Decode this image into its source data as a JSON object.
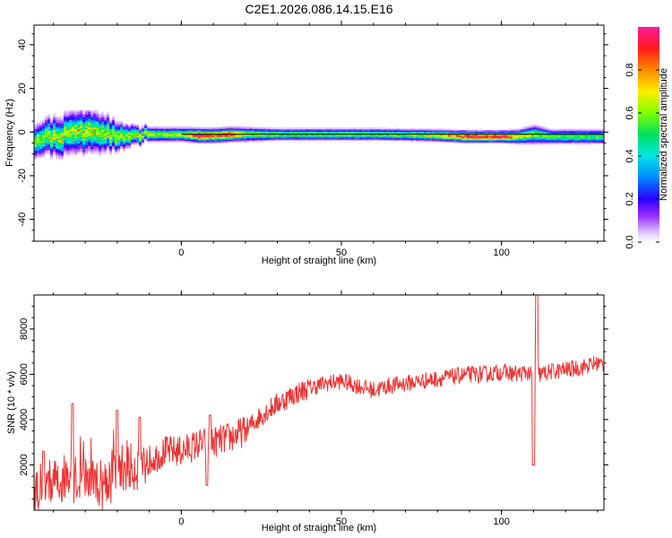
{
  "title": "C2E1.2026.086.14.15.E16",
  "chart_data": [
    {
      "type": "heatmap",
      "xlabel": "Height of straight line (km)",
      "ylabel": "Frequency (Hz)",
      "xlim": [
        -46,
        132
      ],
      "ylim": [
        -50,
        49
      ],
      "xticks": [
        "0",
        "50",
        "100"
      ],
      "yticks": [
        "-40",
        "-20",
        "0",
        "20",
        "40"
      ],
      "colorbar": {
        "label": "Normalized spectral amplitude",
        "range": [
          0,
          1
        ],
        "ticks": [
          "0.0",
          "0.2",
          "0.4",
          "0.6",
          "0.8"
        ]
      },
      "ridge": {
        "x": [
          -46,
          -40,
          -35,
          -30,
          -25,
          -20,
          -15,
          -10,
          -5,
          0,
          5,
          10,
          15,
          20,
          30,
          40,
          50,
          60,
          70,
          80,
          85,
          90,
          95,
          100,
          105,
          110,
          115,
          120,
          125,
          132
        ],
        "freq": [
          -3,
          -2,
          -1,
          0,
          -1,
          -1,
          -1,
          -1,
          -1,
          -1,
          -1.5,
          -1.5,
          -1,
          -1,
          -1,
          -1,
          -1,
          -1,
          -1.2,
          -1.5,
          -1.8,
          -2,
          -2,
          -2,
          -2,
          -1,
          -2,
          -2,
          -2,
          -2
        ],
        "amplitude": [
          0.55,
          0.6,
          0.6,
          0.6,
          0.6,
          0.6,
          0.62,
          0.65,
          0.6,
          0.62,
          0.95,
          0.9,
          0.9,
          0.62,
          0.58,
          0.58,
          0.58,
          0.58,
          0.6,
          0.7,
          0.85,
          0.98,
          0.98,
          0.95,
          0.7,
          0.6,
          0.55,
          0.55,
          0.55,
          0.55
        ],
        "spread_hz": [
          7,
          8,
          9,
          9,
          8,
          6,
          4,
          3,
          3,
          3,
          3,
          3,
          3,
          3,
          2.5,
          2.5,
          2.5,
          2.5,
          2.5,
          2.5,
          2.5,
          2.5,
          2.5,
          2.5,
          3,
          4,
          3,
          3,
          3,
          3
        ]
      }
    },
    {
      "type": "line",
      "xlabel": "Height of straight line (km)",
      "ylabel": "SNR (10 * v/v)",
      "xlim": [
        -46,
        132
      ],
      "ylim": [
        0,
        9500
      ],
      "xticks": [
        "0",
        "50",
        "100"
      ],
      "yticks": [
        "2000",
        "4000",
        "6000",
        "8000"
      ],
      "color": "#ee3333",
      "series": [
        {
          "x": [
            -46,
            -40,
            -35,
            -30,
            -25,
            -20,
            -15,
            -10,
            -5,
            0,
            5,
            10,
            15,
            20,
            25,
            30,
            35,
            40,
            45,
            50,
            55,
            60,
            65,
            70,
            75,
            80,
            85,
            90,
            95,
            100,
            105,
            108,
            109,
            110,
            111,
            112,
            115,
            120,
            125,
            130,
            132
          ],
          "y": [
            1000,
            1300,
            1400,
            1400,
            1200,
            1800,
            1900,
            2200,
            2600,
            2600,
            2900,
            3000,
            3200,
            3500,
            4200,
            4700,
            5100,
            5400,
            5600,
            5700,
            5500,
            5300,
            5500,
            5600,
            5700,
            5800,
            5900,
            6000,
            6000,
            6100,
            6000,
            6100,
            6000,
            5800,
            6200,
            6000,
            6100,
            6200,
            6300,
            6500,
            6400
          ],
          "spikes": [
            {
              "x": -43,
              "y": 2600
            },
            {
              "x": -34,
              "y": 4700
            },
            {
              "x": -20,
              "y": 4400
            },
            {
              "x": -13,
              "y": 4100
            },
            {
              "x": 8,
              "y": 1100
            },
            {
              "x": 9,
              "y": 4200
            },
            {
              "x": 110,
              "y": 2000
            },
            {
              "x": 111,
              "y": 9500
            }
          ]
        }
      ]
    }
  ]
}
